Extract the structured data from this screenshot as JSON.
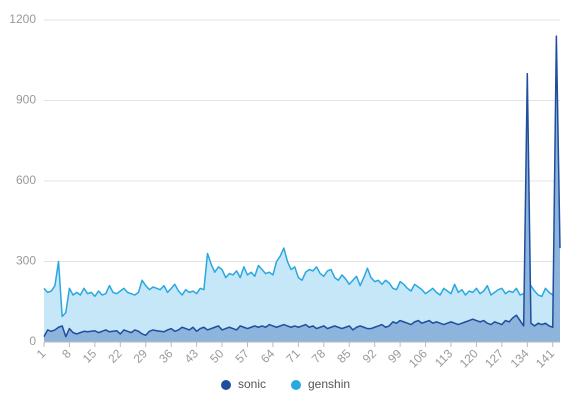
{
  "chart_data": {
    "type": "area",
    "x": [
      1,
      2,
      3,
      4,
      5,
      6,
      7,
      8,
      9,
      10,
      11,
      12,
      13,
      14,
      15,
      16,
      17,
      18,
      19,
      20,
      21,
      22,
      23,
      24,
      25,
      26,
      27,
      28,
      29,
      30,
      31,
      32,
      33,
      34,
      35,
      36,
      37,
      38,
      39,
      40,
      41,
      42,
      43,
      44,
      45,
      46,
      47,
      48,
      49,
      50,
      51,
      52,
      53,
      54,
      55,
      56,
      57,
      58,
      59,
      60,
      61,
      62,
      63,
      64,
      65,
      66,
      67,
      68,
      69,
      70,
      71,
      72,
      73,
      74,
      75,
      76,
      77,
      78,
      79,
      80,
      81,
      82,
      83,
      84,
      85,
      86,
      87,
      88,
      89,
      90,
      91,
      92,
      93,
      94,
      95,
      96,
      97,
      98,
      99,
      100,
      101,
      102,
      103,
      104,
      105,
      106,
      107,
      108,
      109,
      110,
      111,
      112,
      113,
      114,
      115,
      116,
      117,
      118,
      119,
      120,
      121,
      122,
      123,
      124,
      125,
      126,
      127,
      128,
      129,
      130,
      131,
      132,
      133,
      134,
      135,
      136,
      137,
      138,
      139,
      140,
      141,
      142,
      143
    ],
    "xlim": [
      1,
      143
    ],
    "xticks": [
      1,
      8,
      15,
      22,
      29,
      36,
      43,
      50,
      57,
      64,
      71,
      78,
      85,
      92,
      99,
      106,
      113,
      120,
      127,
      134,
      141
    ],
    "ylim": [
      0,
      1200
    ],
    "yticks": [
      0,
      300,
      600,
      900,
      1200
    ],
    "grid": true,
    "legend": "bottom",
    "series": [
      {
        "name": "sonic",
        "color": "#1f4e9c",
        "fill": "#8db4dc",
        "values": [
          20,
          45,
          40,
          45,
          55,
          60,
          20,
          50,
          35,
          30,
          35,
          40,
          38,
          40,
          42,
          35,
          40,
          45,
          38,
          40,
          42,
          30,
          45,
          40,
          35,
          45,
          40,
          30,
          25,
          40,
          45,
          42,
          40,
          38,
          45,
          50,
          40,
          45,
          55,
          50,
          45,
          55,
          40,
          50,
          55,
          45,
          50,
          55,
          60,
          45,
          50,
          55,
          50,
          45,
          60,
          55,
          50,
          55,
          60,
          55,
          60,
          55,
          65,
          60,
          55,
          60,
          65,
          60,
          55,
          60,
          55,
          60,
          65,
          55,
          60,
          50,
          55,
          60,
          50,
          55,
          60,
          55,
          50,
          55,
          60,
          45,
          55,
          60,
          55,
          50,
          50,
          55,
          60,
          65,
          55,
          60,
          75,
          70,
          80,
          75,
          70,
          65,
          75,
          80,
          70,
          75,
          80,
          70,
          75,
          70,
          65,
          70,
          75,
          70,
          65,
          70,
          75,
          80,
          85,
          80,
          75,
          80,
          70,
          65,
          75,
          70,
          65,
          80,
          75,
          90,
          100,
          80,
          60,
          1000,
          70,
          60,
          70,
          65,
          70,
          60,
          55,
          1140,
          350
        ]
      },
      {
        "name": "genshin",
        "color": "#29a8e0",
        "fill": "#c6e7f8",
        "values": [
          200,
          185,
          190,
          210,
          300,
          95,
          110,
          200,
          175,
          185,
          175,
          200,
          180,
          185,
          170,
          190,
          175,
          180,
          210,
          185,
          180,
          190,
          200,
          185,
          180,
          175,
          185,
          230,
          210,
          195,
          205,
          200,
          195,
          210,
          185,
          200,
          215,
          190,
          175,
          195,
          185,
          190,
          180,
          200,
          195,
          330,
          290,
          260,
          280,
          270,
          240,
          255,
          250,
          265,
          240,
          280,
          250,
          260,
          245,
          285,
          270,
          255,
          260,
          250,
          300,
          320,
          350,
          300,
          270,
          280,
          240,
          230,
          260,
          270,
          265,
          280,
          255,
          245,
          265,
          270,
          240,
          230,
          250,
          235,
          215,
          230,
          245,
          210,
          240,
          275,
          240,
          225,
          230,
          215,
          230,
          220,
          200,
          195,
          225,
          215,
          200,
          190,
          215,
          205,
          195,
          180,
          190,
          200,
          185,
          175,
          200,
          190,
          180,
          215,
          185,
          195,
          175,
          190,
          185,
          200,
          180,
          190,
          210,
          175,
          185,
          195,
          200,
          180,
          190,
          185,
          200,
          175,
          180,
          185,
          210,
          190,
          175,
          170,
          200,
          185,
          175,
          170,
          175
        ]
      }
    ]
  }
}
